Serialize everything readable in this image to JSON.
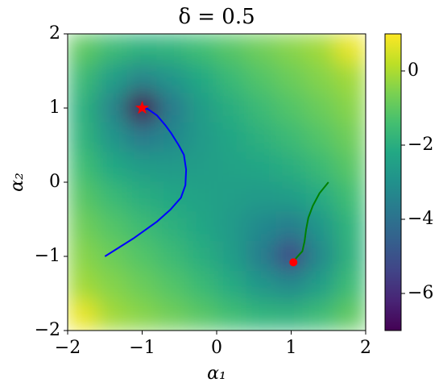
{
  "chart_data": {
    "type": "heatmap",
    "title": "δ = 0.5",
    "xlabel": "α₁",
    "ylabel": "α₂",
    "colormap": "viridis",
    "x": [
      -1.8,
      -1.4,
      -1.0,
      -0.6,
      -0.2,
      0.2,
      0.6,
      1.0,
      1.4,
      1.8
    ],
    "y": [
      1.8,
      1.4,
      1.0,
      0.6,
      0.2,
      -0.2,
      -0.6,
      -1.0,
      -1.4,
      -1.8
    ],
    "z": [
      [
        -1.0,
        -1.56,
        -1.9,
        -1.81,
        -1.48,
        -1.12,
        -0.77,
        -0.44,
        -0.13,
        0.76
      ],
      [
        -1.56,
        -2.56,
        -3.35,
        -2.86,
        -2.15,
        -1.62,
        -1.2,
        -0.83,
        -0.48,
        -0.13
      ],
      [
        -1.9,
        -3.35,
        -6.99,
        -3.72,
        -2.62,
        -2.02,
        -1.58,
        -1.2,
        -0.83,
        -0.44
      ],
      [
        -1.81,
        -2.86,
        -3.72,
        -3.31,
        -2.7,
        -2.26,
        -1.92,
        -1.58,
        -1.2,
        -0.77
      ],
      [
        -1.48,
        -2.15,
        -2.62,
        -2.7,
        -2.57,
        -2.42,
        -2.26,
        -2.01,
        -1.61,
        -1.11
      ],
      [
        -1.12,
        -1.62,
        -2.02,
        -2.26,
        -2.42,
        -2.56,
        -2.68,
        -2.59,
        -2.13,
        -1.47
      ],
      [
        -0.77,
        -1.2,
        -1.58,
        -1.92,
        -2.26,
        -2.68,
        -3.26,
        -3.61,
        -2.81,
        -1.79
      ],
      [
        -0.44,
        -0.83,
        -1.2,
        -1.58,
        -2.01,
        -2.59,
        -3.61,
        -5.29,
        -3.24,
        -1.87
      ],
      [
        -0.13,
        -0.48,
        -0.83,
        -1.2,
        -1.61,
        -2.13,
        -2.81,
        -3.24,
        -2.51,
        -1.54
      ],
      [
        0.76,
        -0.13,
        -0.44,
        -0.77,
        -1.11,
        -1.47,
        -1.79,
        -1.87,
        -1.54,
        -0.98
      ]
    ],
    "xlim": [
      -2,
      2
    ],
    "ylim": [
      -2,
      2
    ],
    "xticks": [
      {
        "value": -2,
        "label": "−2"
      },
      {
        "value": -1,
        "label": "−1"
      },
      0,
      1,
      2
    ],
    "yticks": [
      {
        "value": -2,
        "label": "−2"
      },
      {
        "value": -1,
        "label": "−1"
      },
      0,
      1,
      2
    ],
    "clim": [
      -7,
      1
    ],
    "cticks": [
      {
        "value": -6,
        "label": "−6"
      },
      {
        "value": -4,
        "label": "−4"
      },
      {
        "value": -2,
        "label": "−2"
      },
      0
    ],
    "lines": [
      {
        "color": "#0000ff",
        "x": [
          -1.5,
          -1.12,
          -0.8,
          -0.62,
          -0.48,
          -0.42,
          -0.41,
          -0.44,
          -0.51,
          -0.61,
          -0.69,
          -0.8,
          -0.93,
          -1.0
        ],
        "y": [
          -1.0,
          -0.76,
          -0.53,
          -0.37,
          -0.21,
          -0.04,
          0.17,
          0.37,
          0.5,
          0.66,
          0.77,
          0.9,
          0.99,
          1.0
        ]
      },
      {
        "color": "#008000",
        "x": [
          1.5,
          1.38,
          1.29,
          1.23,
          1.2,
          1.18,
          1.15,
          1.07,
          1.03
        ],
        "y": [
          0.0,
          -0.15,
          -0.32,
          -0.48,
          -0.64,
          -0.8,
          -0.93,
          -1.02,
          -1.08
        ]
      }
    ],
    "points": [
      {
        "x": -1.0,
        "y": 1.0,
        "marker": "star",
        "color": "#ff0000"
      },
      {
        "x": 1.03,
        "y": -1.08,
        "marker": "circle",
        "color": "#ff0000"
      }
    ]
  }
}
